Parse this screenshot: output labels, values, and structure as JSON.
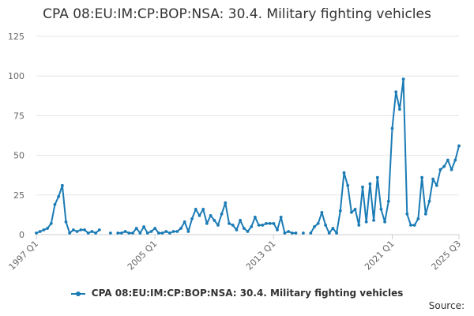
{
  "chart_data": {
    "type": "line",
    "title": "CPA 08:EU:IM:CP:BOP:NSA: 30.4. Military fighting vehicles",
    "xlabel": "",
    "ylabel": "",
    "ylim": [
      0,
      125
    ],
    "yticks": [
      0,
      25,
      50,
      75,
      100,
      125
    ],
    "xtick_labels": [
      "1997 Q1",
      "2005 Q1",
      "2013 Q1",
      "2021 Q1",
      "2025 Q3"
    ],
    "grid": true,
    "legend_position": "bottom",
    "series": [
      {
        "name": "CPA 08:EU:IM:CP:BOP:NSA: 30.4. Military fighting vehicles",
        "color": "#1a7bb5",
        "points": [
          [
            "1997 Q1",
            1
          ],
          [
            "1997 Q2",
            2
          ],
          [
            "1997 Q3",
            3
          ],
          [
            "1997 Q4",
            4
          ],
          [
            "1998 Q1",
            7
          ],
          [
            "1998 Q2",
            19
          ],
          [
            "1998 Q3",
            24
          ],
          [
            "1998 Q4",
            31
          ],
          [
            "1999 Q1",
            8
          ],
          [
            "1999 Q2",
            1
          ],
          [
            "1999 Q3",
            3
          ],
          [
            "1999 Q4",
            2
          ],
          [
            "2000 Q1",
            3
          ],
          [
            "2000 Q2",
            3
          ],
          [
            "2000 Q3",
            1
          ],
          [
            "2000 Q4",
            2
          ],
          [
            "2001 Q1",
            1
          ],
          [
            "2001 Q2",
            3
          ],
          [
            "2002 Q1",
            1
          ],
          [
            "2002 Q3",
            1
          ],
          [
            "2002 Q4",
            1
          ],
          [
            "2003 Q1",
            2
          ],
          [
            "2003 Q2",
            1
          ],
          [
            "2003 Q3",
            1
          ],
          [
            "2003 Q4",
            4
          ],
          [
            "2004 Q1",
            1
          ],
          [
            "2004 Q2",
            5
          ],
          [
            "2004 Q3",
            1
          ],
          [
            "2004 Q4",
            2
          ],
          [
            "2005 Q1",
            4
          ],
          [
            "2005 Q2",
            1
          ],
          [
            "2005 Q3",
            1
          ],
          [
            "2005 Q4",
            2
          ],
          [
            "2006 Q1",
            1
          ],
          [
            "2006 Q2",
            2
          ],
          [
            "2006 Q3",
            2
          ],
          [
            "2006 Q4",
            4
          ],
          [
            "2007 Q1",
            8
          ],
          [
            "2007 Q2",
            2
          ],
          [
            "2007 Q3",
            10
          ],
          [
            "2007 Q4",
            16
          ],
          [
            "2008 Q1",
            12
          ],
          [
            "2008 Q2",
            16
          ],
          [
            "2008 Q3",
            7
          ],
          [
            "2008 Q4",
            12
          ],
          [
            "2009 Q1",
            9
          ],
          [
            "2009 Q2",
            6
          ],
          [
            "2009 Q3",
            13
          ],
          [
            "2009 Q4",
            20
          ],
          [
            "2010 Q1",
            7
          ],
          [
            "2010 Q2",
            6
          ],
          [
            "2010 Q3",
            3
          ],
          [
            "2010 Q4",
            9
          ],
          [
            "2011 Q1",
            4
          ],
          [
            "2011 Q2",
            2
          ],
          [
            "2011 Q3",
            5
          ],
          [
            "2011 Q4",
            11
          ],
          [
            "2012 Q1",
            6
          ],
          [
            "2012 Q2",
            6
          ],
          [
            "2012 Q3",
            7
          ],
          [
            "2012 Q4",
            7
          ],
          [
            "2013 Q1",
            7
          ],
          [
            "2013 Q2",
            3
          ],
          [
            "2013 Q3",
            11
          ],
          [
            "2013 Q4",
            1
          ],
          [
            "2014 Q1",
            2
          ],
          [
            "2014 Q2",
            1
          ],
          [
            "2014 Q3",
            1
          ],
          [
            "2015 Q1",
            1
          ],
          [
            "2015 Q3",
            1
          ],
          [
            "2015 Q4",
            5
          ],
          [
            "2016 Q1",
            7
          ],
          [
            "2016 Q2",
            14
          ],
          [
            "2016 Q3",
            6
          ],
          [
            "2016 Q4",
            1
          ],
          [
            "2017 Q1",
            4
          ],
          [
            "2017 Q2",
            1
          ],
          [
            "2017 Q3",
            15
          ],
          [
            "2017 Q4",
            39
          ],
          [
            "2018 Q1",
            31
          ],
          [
            "2018 Q2",
            14
          ],
          [
            "2018 Q3",
            16
          ],
          [
            "2018 Q4",
            6
          ],
          [
            "2019 Q1",
            30
          ],
          [
            "2019 Q2",
            8
          ],
          [
            "2019 Q3",
            32
          ],
          [
            "2019 Q4",
            9
          ],
          [
            "2020 Q1",
            36
          ],
          [
            "2020 Q2",
            16
          ],
          [
            "2020 Q3",
            8
          ],
          [
            "2020 Q4",
            21
          ],
          [
            "2021 Q1",
            67
          ],
          [
            "2021 Q2",
            90
          ],
          [
            "2021 Q3",
            79
          ],
          [
            "2021 Q4",
            98
          ],
          [
            "2022 Q1",
            13
          ],
          [
            "2022 Q2",
            6
          ],
          [
            "2022 Q3",
            6
          ],
          [
            "2022 Q4",
            10
          ],
          [
            "2023 Q1",
            36
          ],
          [
            "2023 Q2",
            13
          ],
          [
            "2023 Q3",
            21
          ],
          [
            "2023 Q4",
            35
          ],
          [
            "2024 Q1",
            31
          ],
          [
            "2024 Q2",
            41
          ],
          [
            "2024 Q3",
            43
          ],
          [
            "2024 Q4",
            47
          ],
          [
            "2025 Q1",
            41
          ],
          [
            "2025 Q2",
            47
          ],
          [
            "2025 Q3",
            56
          ]
        ]
      }
    ]
  },
  "footer": {
    "source_label": "Source:"
  }
}
